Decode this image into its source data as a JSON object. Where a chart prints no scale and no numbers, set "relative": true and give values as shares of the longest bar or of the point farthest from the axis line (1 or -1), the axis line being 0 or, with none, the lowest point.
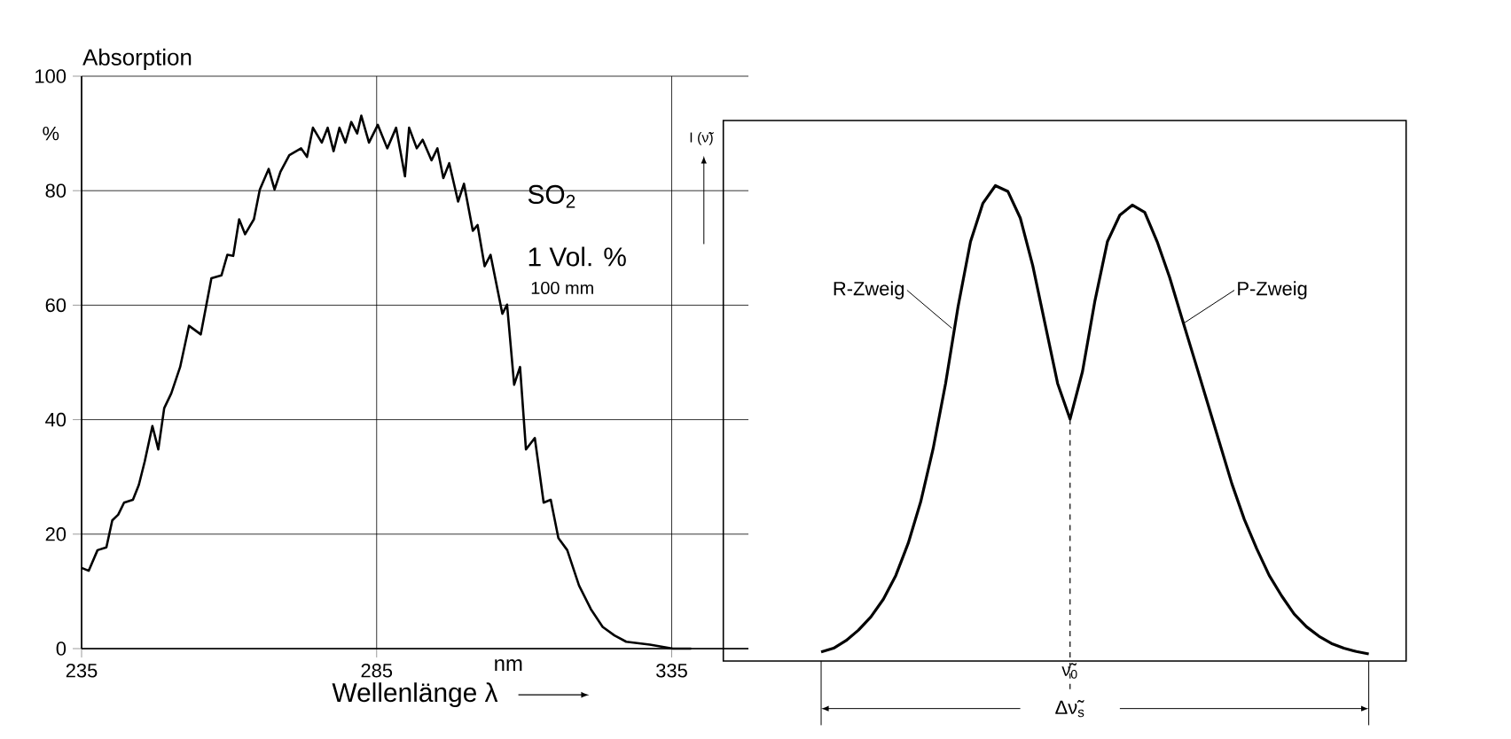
{
  "chart_data": [
    {
      "type": "line",
      "ylabel": "Absorption",
      "xlabel": "Wellenlänge λ",
      "annotations": [
        "%",
        "SO$_{2}$",
        "1 Vol. %",
        "100 mm",
        "nm"
      ],
      "x": [
        235,
        236.2,
        237.7,
        239.2,
        240.2,
        241.2,
        242.2,
        243.7,
        244.7,
        245.7,
        247,
        248,
        249,
        250.2,
        251.7,
        253.2,
        255.2,
        257,
        258.7,
        259.7,
        260.7,
        261.7,
        262.7,
        264.2,
        265.2,
        266.7,
        267.7,
        268.7,
        270.2,
        272.2,
        273.2,
        274.2,
        275.7,
        276.7,
        277.7,
        278.7,
        279.7,
        280.7,
        281.7,
        282.4,
        283.7,
        285.2,
        286.8,
        288.3,
        289.8,
        290.5,
        291.8,
        292.8,
        294.3,
        295.3,
        296.3,
        297.3,
        298.8,
        299.8,
        301.3,
        302.1,
        303.3,
        304.3,
        306.3,
        307.1,
        308.3,
        309.3,
        310.3,
        311.8,
        313.3,
        314.5,
        315.8,
        317.3,
        319.3,
        321.3,
        323.3,
        325.3,
        327.3,
        331.3,
        335.2,
        338.3
      ],
      "values": [
        14.1,
        13.6,
        17.2,
        17.7,
        22.4,
        23.4,
        25.5,
        26,
        28.6,
        32.7,
        38.9,
        34.8,
        42,
        44.6,
        49.2,
        56.4,
        54.9,
        64.7,
        65.2,
        68.8,
        68.6,
        75,
        72.4,
        75,
        80.2,
        83.8,
        80.2,
        83.3,
        86.2,
        87.4,
        85.9,
        91,
        88.4,
        91,
        86.9,
        91,
        88.4,
        92,
        90,
        93.1,
        88.4,
        91.5,
        87.4,
        91,
        82.5,
        91,
        87.4,
        88.9,
        85.3,
        87.4,
        82.2,
        84.8,
        78.1,
        81.2,
        73,
        74,
        66.8,
        68.8,
        58.5,
        60.1,
        46.1,
        49.2,
        34.8,
        36.8,
        25.5,
        26,
        19.3,
        17.2,
        11,
        6.9,
        3.8,
        2.3,
        1.2,
        0.7,
        0,
        0
      ],
      "color": "#000000",
      "xlim": [
        235,
        348
      ],
      "ylim": [
        0,
        100
      ],
      "xticks": [
        235,
        285,
        335
      ],
      "yticks": [
        0,
        20,
        40,
        60,
        80,
        100
      ],
      "grid": true
    },
    {
      "type": "line",
      "relative": true,
      "ylabel": "I (ν̃)",
      "annotations": [
        "R-Zweig",
        "P-Zweig",
        "Δν̃$_{s}$",
        {
          "text": "ν̃$_{0}$",
          "y": 0.509
        }
      ],
      "categories": [
        null,
        null,
        null,
        null,
        null,
        null,
        null,
        null,
        null,
        null,
        null,
        null,
        null,
        null,
        null,
        null,
        null,
        null,
        null,
        null,
        null,
        null,
        null,
        null,
        null,
        null,
        null,
        null,
        null,
        null,
        null,
        null,
        null,
        null,
        null,
        null,
        null,
        null,
        null,
        null,
        null,
        null,
        null,
        null,
        null
      ],
      "values": [
        0.019,
        0.027,
        0.043,
        0.065,
        0.093,
        0.13,
        0.18,
        0.248,
        0.335,
        0.447,
        0.584,
        0.745,
        0.882,
        0.963,
        1,
        0.988,
        0.932,
        0.832,
        0.708,
        0.584,
        0.509,
        0.609,
        0.758,
        0.882,
        0.938,
        0.959,
        0.944,
        0.882,
        0.807,
        0.72,
        0.634,
        0.547,
        0.46,
        0.373,
        0.298,
        0.236,
        0.18,
        0.137,
        0.099,
        0.072,
        0.052,
        0.037,
        0.027,
        0.02,
        0.015
      ],
      "color": "#000000"
    }
  ]
}
